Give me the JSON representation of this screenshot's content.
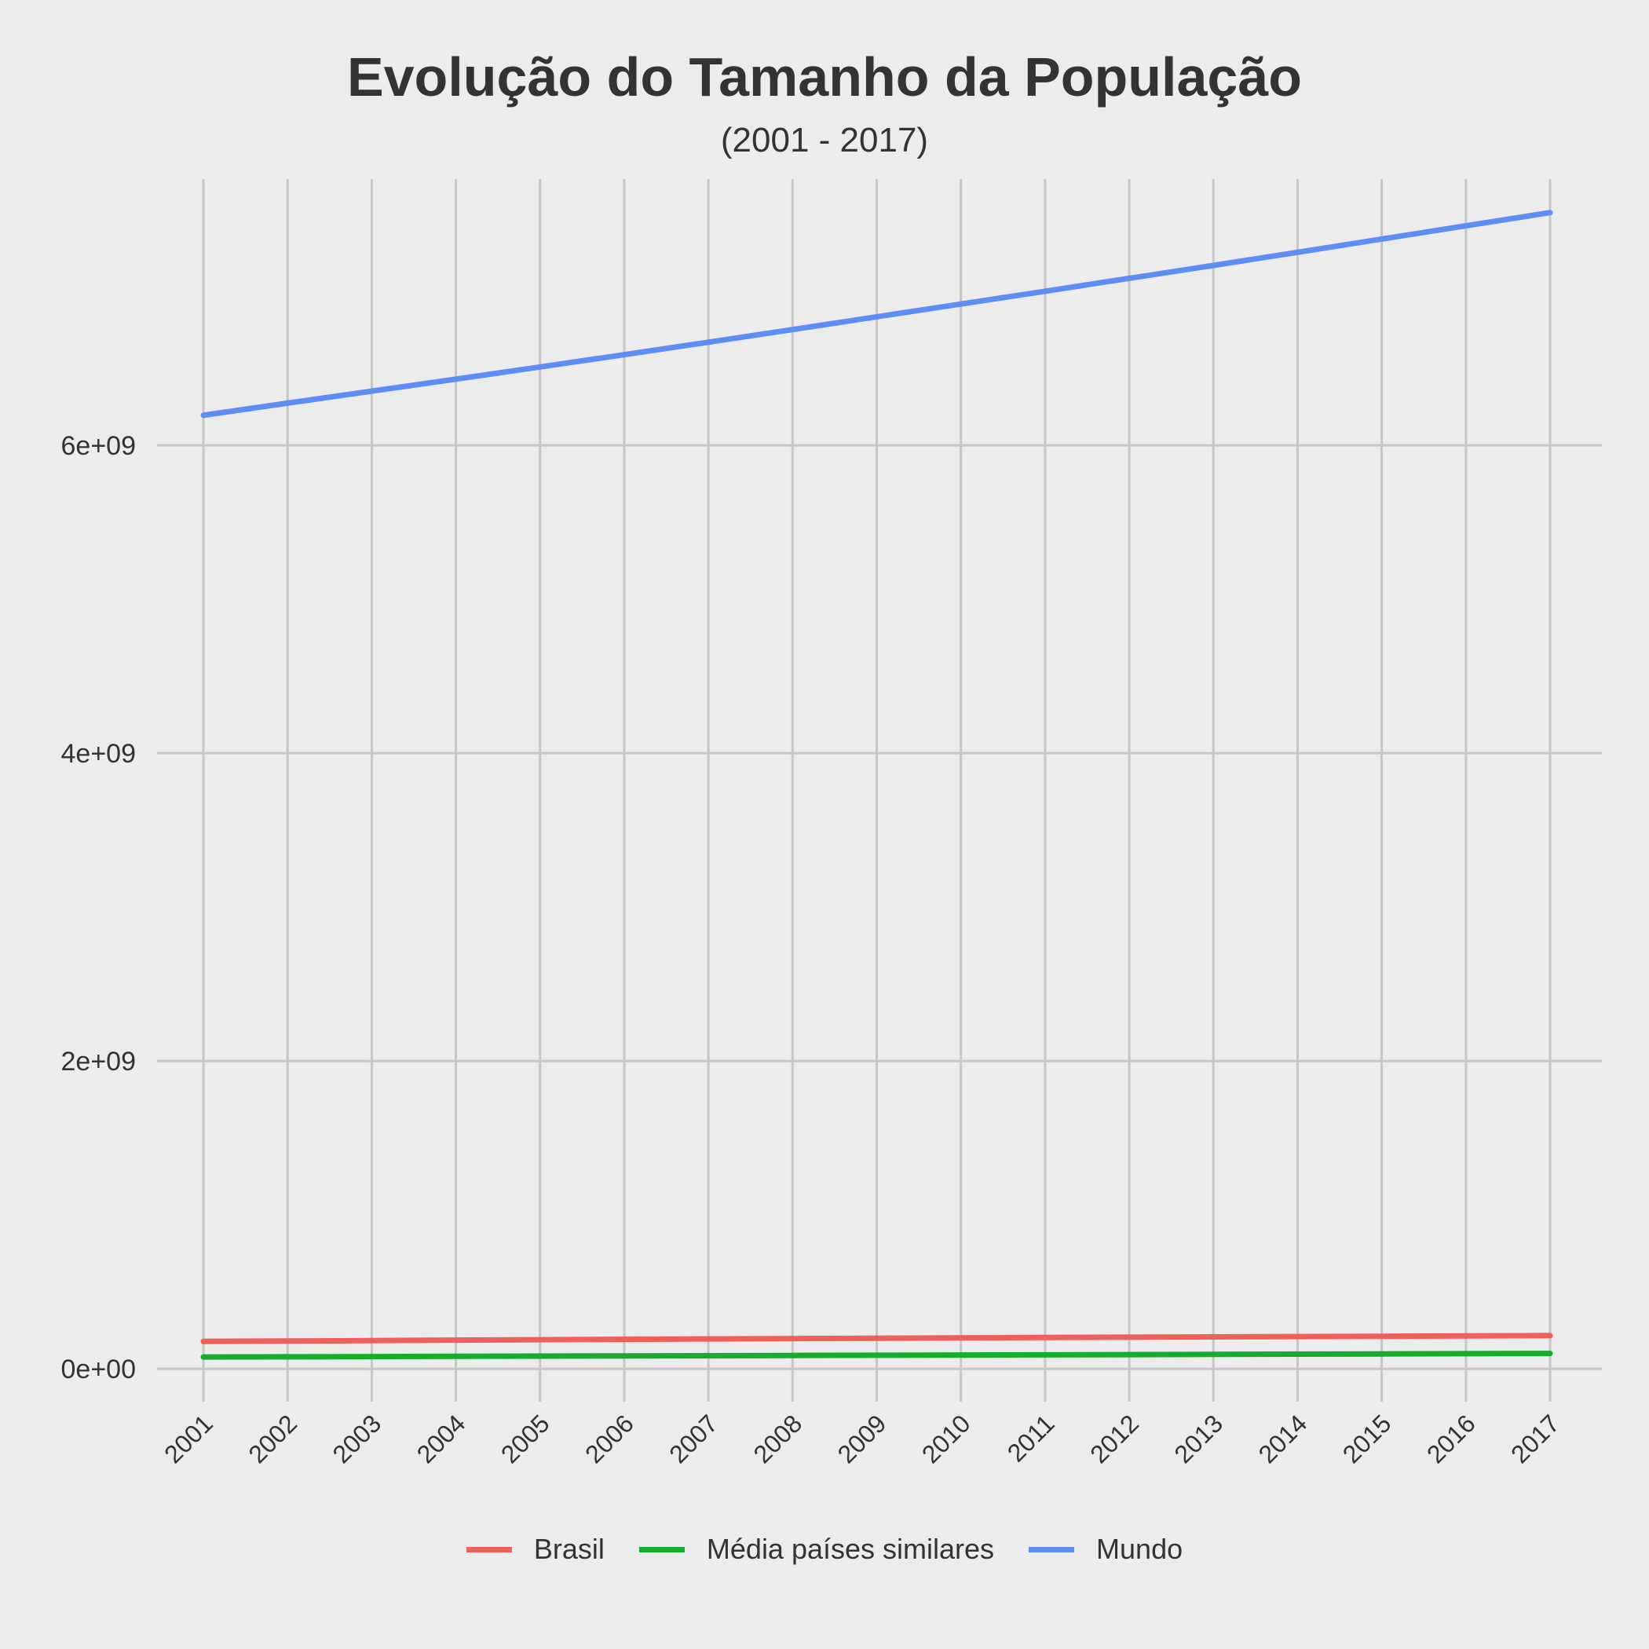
{
  "chart_data": {
    "type": "line",
    "title": "Evolução do Tamanho da População",
    "subtitle": "(2001 - 2017)",
    "xlabel": "",
    "ylabel": "",
    "x": [
      2001,
      2002,
      2003,
      2004,
      2005,
      2006,
      2007,
      2008,
      2009,
      2010,
      2011,
      2012,
      2013,
      2014,
      2015,
      2016,
      2017
    ],
    "y_ticks": [
      0,
      2000000000,
      4000000000,
      6000000000
    ],
    "y_tick_labels": [
      "0e+00",
      "2e+09",
      "4e+09",
      "6e+09"
    ],
    "ylim": [
      -60000000,
      7730000000
    ],
    "grid": true,
    "legend_position": "bottom",
    "series": [
      {
        "name": "Brasil",
        "color": "#f0605a",
        "values": [
          178000000,
          181000000,
          183900000,
          186700000,
          189500000,
          192000000,
          194500000,
          196800000,
          199100000,
          201300000,
          203500000,
          205700000,
          207800000,
          209900000,
          211900000,
          213900000,
          215800000
        ]
      },
      {
        "name": "Média países similares",
        "color": "#17ad2c",
        "values": [
          77000000,
          78500000,
          80000000,
          81400000,
          82800000,
          84200000,
          85600000,
          87000000,
          88400000,
          89800000,
          91200000,
          92600000,
          94000000,
          95500000,
          97000000,
          98500000,
          100000000
        ]
      },
      {
        "name": "Mundo",
        "color": "#5c8ef5",
        "values": [
          6195000000,
          6274000000,
          6352000000,
          6430000000,
          6509000000,
          6589000000,
          6670000000,
          6752000000,
          6835000000,
          6918000000,
          7001000000,
          7085000000,
          7169000000,
          7254000000,
          7340000000,
          7426000000,
          7512000000
        ]
      }
    ]
  }
}
